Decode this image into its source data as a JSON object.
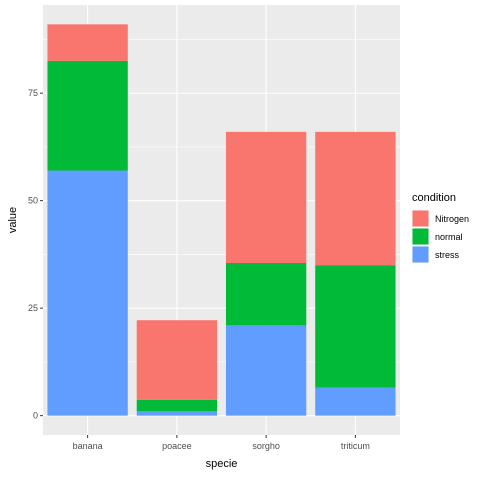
{
  "chart_data": {
    "type": "bar",
    "stacked": true,
    "categories": [
      "banana",
      "poacee",
      "sorgho",
      "triticum"
    ],
    "series": [
      {
        "name": "stress",
        "color": "#619CFF",
        "values": [
          57,
          1,
          21,
          6.5
        ]
      },
      {
        "name": "normal",
        "color": "#00BA38",
        "values": [
          25.5,
          2.7,
          14.5,
          28.5
        ]
      },
      {
        "name": "Nitrogen",
        "color": "#F8766D",
        "values": [
          8.5,
          18.5,
          30.5,
          31
        ]
      }
    ],
    "legend_order": [
      "Nitrogen",
      "normal",
      "stress"
    ],
    "legend_title": "condition",
    "xlabel": "specie",
    "ylabel": "value",
    "ylim": [
      -4.5,
      95.5
    ],
    "yticks": [
      0,
      25,
      50,
      75
    ],
    "grid": true,
    "legend_position": "right",
    "panel_background": "#EBEBEB",
    "grid_color": "#FFFFFF"
  }
}
